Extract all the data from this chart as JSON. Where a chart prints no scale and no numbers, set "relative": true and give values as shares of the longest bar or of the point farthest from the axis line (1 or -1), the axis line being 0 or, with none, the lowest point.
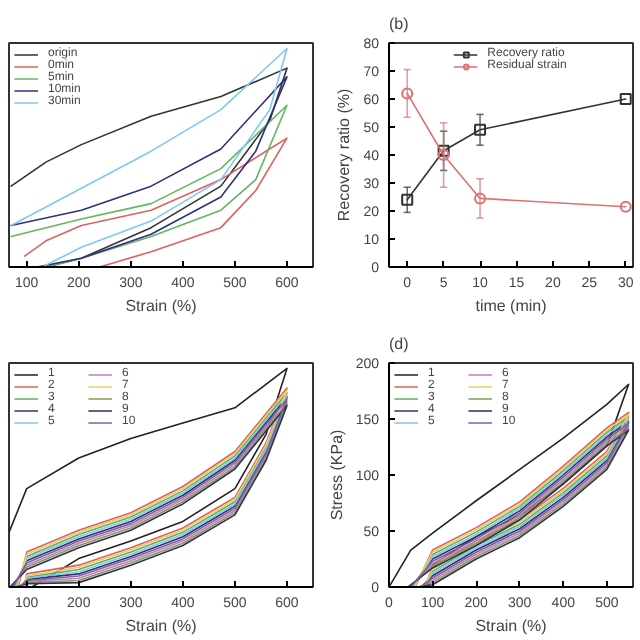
{
  "chart_data": [
    {
      "type": "line",
      "relative": true,
      "xlabel": "Strain (%)",
      "xlim": [
        66,
        650
      ],
      "xticks": [
        100,
        200,
        300,
        400,
        500,
        600
      ],
      "legend": "top left",
      "tick_labels": "x",
      "series": [
        {
          "name": "origin",
          "color": "#333333",
          "x": [
            70,
            137,
            205,
            339,
            473,
            600,
            567,
            473,
            339,
            205,
            137
          ],
          "values": [
            0.37,
            0.48,
            0.56,
            0.69,
            0.78,
            0.91,
            0.67,
            0.37,
            0.18,
            0.04,
            0
          ]
        },
        {
          "name": "0min",
          "color": "#e06060",
          "x": [
            96,
            137,
            205,
            339,
            473,
            600,
            540,
            473,
            339,
            240
          ],
          "values": [
            0.05,
            0.12,
            0.19,
            0.26,
            0.4,
            0.59,
            0.35,
            0.18,
            0.07,
            0
          ]
        },
        {
          "name": "5min",
          "color": "#60b860",
          "x": [
            70,
            205,
            339,
            473,
            600,
            540,
            473,
            339,
            205,
            137
          ],
          "values": [
            0.14,
            0.22,
            0.29,
            0.45,
            0.74,
            0.4,
            0.26,
            0.14,
            0.04,
            0
          ]
        },
        {
          "name": "10min",
          "color": "#303080",
          "x": [
            70,
            205,
            339,
            473,
            600,
            540,
            473,
            339,
            205,
            120
          ],
          "values": [
            0.19,
            0.26,
            0.37,
            0.54,
            0.87,
            0.53,
            0.32,
            0.15,
            0.04,
            0
          ]
        },
        {
          "name": "30min",
          "color": "#80c8f0",
          "x": [
            70,
            205,
            339,
            473,
            600,
            567,
            473,
            339,
            205,
            130
          ],
          "values": [
            0.19,
            0.36,
            0.53,
            0.72,
            1.0,
            0.72,
            0.4,
            0.21,
            0.09,
            0
          ]
        }
      ]
    },
    {
      "type": "line",
      "title": "(b)",
      "xlabel": "time (min)",
      "ylabel": "Recovery ratio (%)",
      "xlim": [
        -2.5,
        31
      ],
      "xticks": [
        0,
        5,
        10,
        15,
        20,
        25,
        30
      ],
      "ylim": [
        0,
        80
      ],
      "yticks": [
        0,
        10,
        20,
        30,
        40,
        50,
        60,
        70,
        80
      ],
      "legend": "top",
      "series": [
        {
          "name": "Recovery ratio",
          "color": "#333333",
          "marker": "square",
          "x": [
            0,
            5,
            10,
            30
          ],
          "values": [
            24,
            41.5,
            49,
            60
          ],
          "errors": [
            4.5,
            7,
            5.5,
            null
          ]
        },
        {
          "name": "Residual strain",
          "color": "#e07070",
          "marker": "circle",
          "x": [
            0,
            5,
            10,
            30
          ],
          "values": [
            62,
            40,
            24.5,
            21.5
          ],
          "errors": [
            8.5,
            11.5,
            7,
            null
          ]
        }
      ]
    },
    {
      "type": "line",
      "relative": true,
      "xlabel": "Strain (%)",
      "xlim": [
        66,
        650
      ],
      "xticks": [
        100,
        200,
        300,
        400,
        500,
        600
      ],
      "legend": "top left",
      "tick_labels": "x",
      "series": [
        {
          "name": "1",
          "color": "#222222",
          "x": [
            66,
            100,
            200,
            300,
            400,
            500,
            600,
            560,
            500,
            400,
            300,
            200,
            110
          ],
          "values": [
            0.25,
            0.45,
            0.59,
            0.68,
            0.75,
            0.82,
            1.0,
            0.7,
            0.45,
            0.3,
            0.21,
            0.13,
            0
          ]
        },
        {
          "name": "2",
          "color": "#e06060",
          "x": [
            84,
            100,
            200,
            300,
            400,
            500,
            600,
            560,
            500,
            400,
            300,
            200,
            100,
            96
          ],
          "values": [
            0,
            0.16,
            0.26,
            0.34,
            0.46,
            0.62,
            0.91,
            0.66,
            0.41,
            0.27,
            0.18,
            0.1,
            0.06,
            0
          ]
        },
        {
          "name": "3",
          "color": "#60b060",
          "x": [
            80,
            100,
            200,
            300,
            400,
            500,
            600,
            560,
            500,
            400,
            300,
            200,
            100,
            92
          ],
          "values": [
            0,
            0.14,
            0.24,
            0.32,
            0.44,
            0.6,
            0.89,
            0.64,
            0.39,
            0.25,
            0.16,
            0.08,
            0.045,
            0
          ]
        },
        {
          "name": "4",
          "color": "#303070",
          "x": [
            76,
            100,
            200,
            300,
            400,
            500,
            600,
            560,
            500,
            400,
            300,
            200,
            100,
            88
          ],
          "values": [
            0,
            0.12,
            0.22,
            0.3,
            0.42,
            0.58,
            0.87,
            0.62,
            0.37,
            0.23,
            0.14,
            0.06,
            0.035,
            0
          ]
        },
        {
          "name": "5",
          "color": "#80c8e8",
          "x": [
            78,
            100,
            200,
            300,
            400,
            500,
            600,
            560,
            500,
            400,
            300,
            200,
            100,
            90
          ],
          "values": [
            0,
            0.13,
            0.23,
            0.31,
            0.43,
            0.59,
            0.88,
            0.63,
            0.38,
            0.24,
            0.15,
            0.07,
            0.04,
            0
          ]
        },
        {
          "name": "6",
          "color": "#c080c0",
          "x": [
            72,
            100,
            200,
            300,
            400,
            500,
            600,
            560,
            500,
            400,
            300,
            200,
            100,
            84
          ],
          "values": [
            0,
            0.1,
            0.2,
            0.28,
            0.4,
            0.56,
            0.85,
            0.6,
            0.35,
            0.21,
            0.12,
            0.04,
            0.025,
            0
          ]
        },
        {
          "name": "7",
          "color": "#e8d060",
          "x": [
            82,
            100,
            200,
            300,
            400,
            500,
            600,
            560,
            500,
            400,
            300,
            200,
            100,
            94
          ],
          "values": [
            0,
            0.15,
            0.25,
            0.33,
            0.45,
            0.61,
            0.9,
            0.65,
            0.4,
            0.26,
            0.17,
            0.09,
            0.05,
            0
          ]
        },
        {
          "name": "8",
          "color": "#8a9a50",
          "x": [
            70,
            100,
            200,
            300,
            400,
            500,
            600,
            560,
            500,
            400,
            300,
            200,
            100,
            82
          ],
          "values": [
            0,
            0.09,
            0.19,
            0.27,
            0.39,
            0.55,
            0.84,
            0.59,
            0.34,
            0.2,
            0.11,
            0.03,
            0.02,
            0
          ]
        },
        {
          "name": "9",
          "color": "#303060",
          "x": [
            68,
            100,
            200,
            300,
            400,
            500,
            600,
            560,
            500,
            400,
            300,
            200,
            100,
            80
          ],
          "values": [
            0,
            0.08,
            0.18,
            0.26,
            0.38,
            0.54,
            0.83,
            0.58,
            0.33,
            0.19,
            0.1,
            0.02,
            0.015,
            0
          ]
        },
        {
          "name": "10",
          "color": "#8060a0",
          "x": [
            74,
            100,
            200,
            300,
            400,
            500,
            600,
            560,
            500,
            400,
            300,
            200,
            100,
            86
          ],
          "values": [
            0,
            0.11,
            0.21,
            0.29,
            0.41,
            0.57,
            0.86,
            0.61,
            0.36,
            0.22,
            0.13,
            0.05,
            0.03,
            0
          ]
        }
      ]
    },
    {
      "type": "line",
      "title": "(d)",
      "xlabel": "Strain (%)",
      "ylabel": "Stress (KPa)",
      "xlim": [
        0,
        560
      ],
      "xticks": [
        0,
        100,
        200,
        300,
        400,
        500
      ],
      "ylim": [
        0,
        200
      ],
      "yticks": [
        0,
        50,
        100,
        150,
        200
      ],
      "legend": "top left",
      "series": [
        {
          "name": "1",
          "color": "#222222",
          "x": [
            0,
            50,
            100,
            200,
            300,
            400,
            500,
            550,
            500,
            400,
            300,
            200,
            100,
            90
          ],
          "values": [
            0,
            33,
            48,
            77,
            105,
            133,
            163,
            181,
            126,
            92,
            64,
            45,
            20,
            0
          ]
        },
        {
          "name": "2",
          "color": "#e06060",
          "x": [
            0,
            60,
            100,
            200,
            300,
            400,
            500,
            550,
            500,
            400,
            300,
            200,
            100,
            82
          ],
          "values": [
            0,
            0,
            33,
            53,
            76,
            108,
            142,
            156,
            121,
            88,
            60,
            41,
            18,
            0
          ]
        },
        {
          "name": "3",
          "color": "#60b060",
          "x": [
            56,
            100,
            200,
            300,
            400,
            500,
            550,
            500,
            400,
            300,
            200,
            100,
            78
          ],
          "values": [
            0,
            29,
            49,
            72,
            104,
            138,
            152,
            117,
            84,
            56,
            37,
            14,
            0
          ]
        },
        {
          "name": "4",
          "color": "#303070",
          "x": [
            52,
            100,
            200,
            300,
            400,
            500,
            550,
            500,
            400,
            300,
            200,
            100,
            74
          ],
          "values": [
            0,
            25,
            45,
            68,
            100,
            134,
            148,
            113,
            80,
            52,
            33,
            10,
            0
          ]
        },
        {
          "name": "5",
          "color": "#80c8e8",
          "x": [
            54,
            100,
            200,
            300,
            400,
            500,
            550,
            500,
            400,
            300,
            200,
            100,
            76
          ],
          "values": [
            0,
            27,
            47,
            70,
            102,
            136,
            150,
            115,
            82,
            54,
            35,
            12,
            0
          ]
        },
        {
          "name": "6",
          "color": "#c080c0",
          "x": [
            48,
            100,
            200,
            300,
            400,
            500,
            550,
            500,
            400,
            300,
            200,
            100,
            70
          ],
          "values": [
            0,
            21,
            41,
            64,
            96,
            130,
            144,
            109,
            76,
            48,
            29,
            6,
            0
          ]
        },
        {
          "name": "7",
          "color": "#e8d060",
          "x": [
            58,
            100,
            200,
            300,
            400,
            500,
            550,
            500,
            400,
            300,
            200,
            100,
            80
          ],
          "values": [
            0,
            31,
            51,
            74,
            106,
            140,
            154,
            119,
            86,
            58,
            39,
            16,
            0
          ]
        },
        {
          "name": "8",
          "color": "#8a9a50",
          "x": [
            46,
            100,
            200,
            300,
            400,
            500,
            550,
            500,
            400,
            300,
            200,
            100,
            68
          ],
          "values": [
            0,
            19,
            39,
            62,
            94,
            128,
            142,
            107,
            74,
            46,
            27,
            4,
            0
          ]
        },
        {
          "name": "9",
          "color": "#303060",
          "x": [
            44,
            100,
            200,
            300,
            400,
            500,
            550,
            500,
            400,
            300,
            200,
            100,
            66
          ],
          "values": [
            0,
            17,
            37,
            60,
            92,
            126,
            140,
            105,
            72,
            44,
            25,
            2,
            0
          ]
        },
        {
          "name": "10",
          "color": "#8060a0",
          "x": [
            50,
            100,
            200,
            300,
            400,
            500,
            550,
            500,
            400,
            300,
            200,
            100,
            72
          ],
          "values": [
            0,
            23,
            43,
            66,
            98,
            132,
            146,
            111,
            78,
            50,
            31,
            8,
            0
          ]
        }
      ]
    }
  ]
}
